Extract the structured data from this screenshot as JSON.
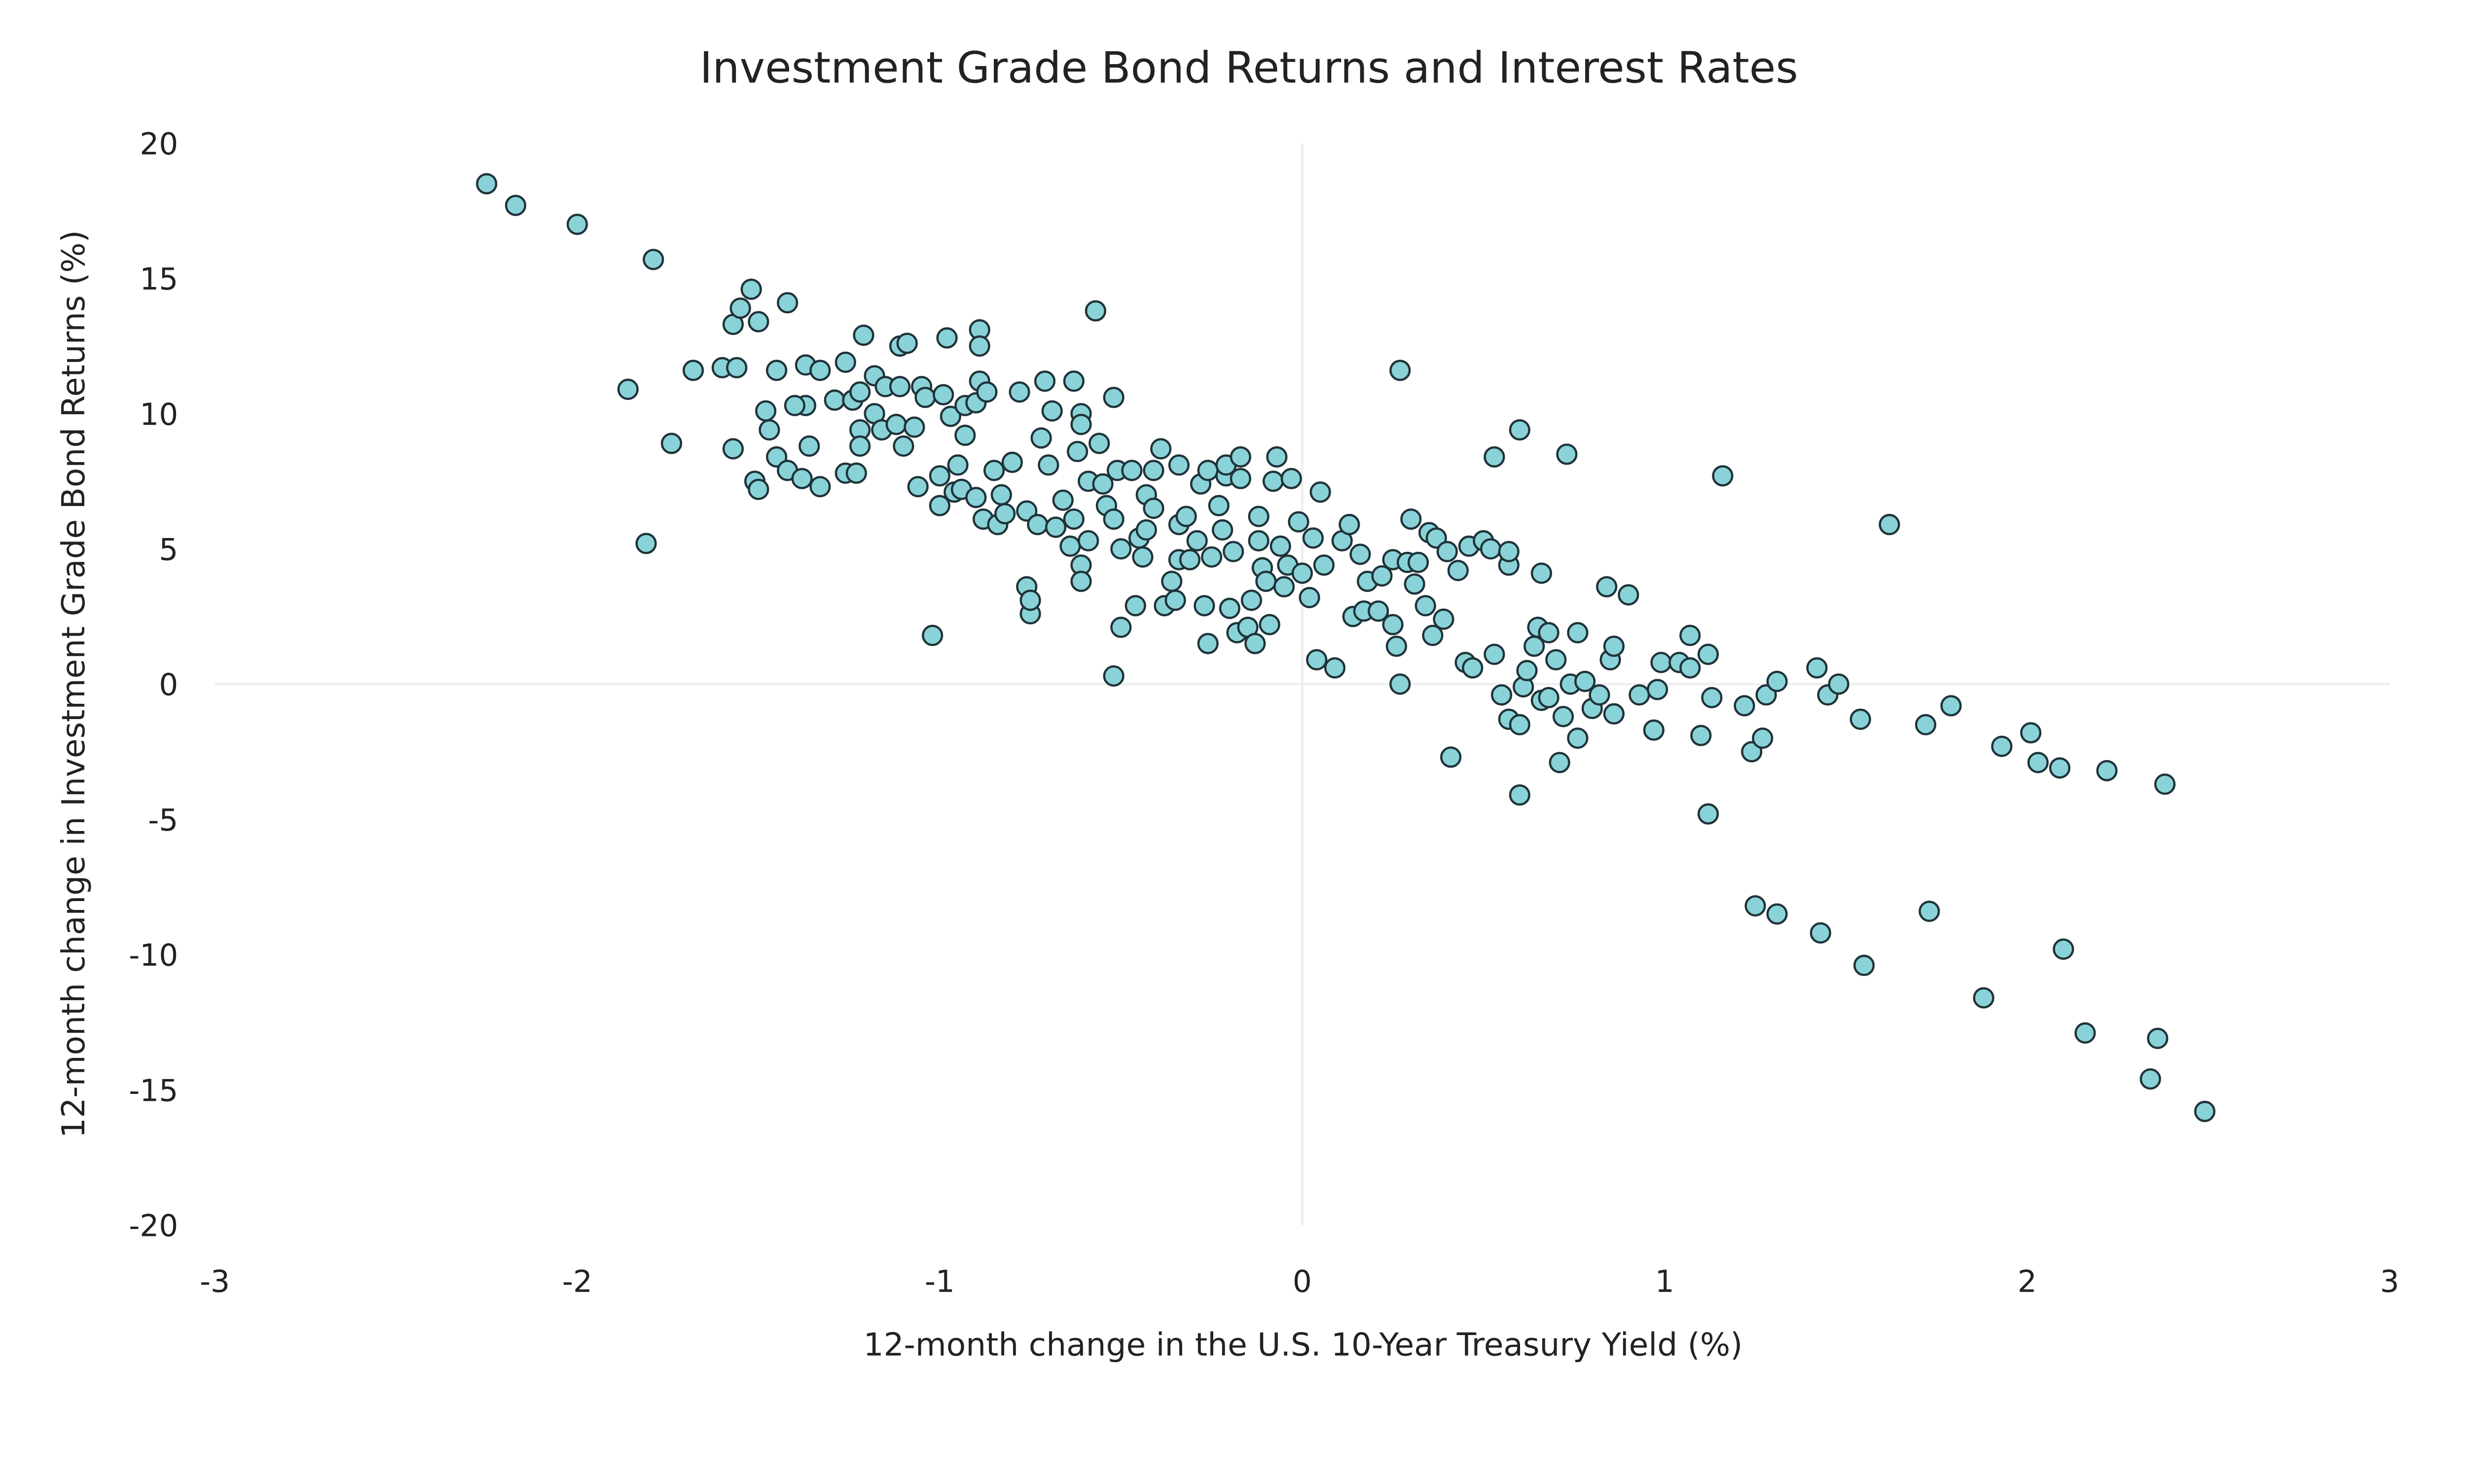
{
  "chart_data": {
    "type": "scatter",
    "title": "Investment Grade Bond Returns and Interest Rates",
    "xlabel": "12-month change in the U.S. 10-Year Treasury Yield (%)",
    "ylabel": "12-month change in Investment Grade Bond Returns (%)",
    "xlim": [
      -3,
      3
    ],
    "ylim": [
      -20,
      20
    ],
    "xticks": [
      "-3",
      "-2",
      "-1",
      "0",
      "1",
      "2",
      "3"
    ],
    "yticks": [
      "20",
      "15",
      "10",
      "5",
      "0",
      "-5",
      "-10",
      "-15",
      "-20"
    ],
    "grid": "zero lines only",
    "colors": {
      "marker_fill": "#89d3d8",
      "marker_edge": "#1f3339",
      "zero_line": "#eeeeee"
    },
    "points": [
      [
        -2.25,
        18.5
      ],
      [
        -2.17,
        17.7
      ],
      [
        -2.0,
        17.0
      ],
      [
        -1.79,
        15.7
      ],
      [
        -1.86,
        10.9
      ],
      [
        -1.74,
        8.9
      ],
      [
        -1.81,
        5.2
      ],
      [
        -1.68,
        11.6
      ],
      [
        -1.6,
        11.7
      ],
      [
        -1.56,
        11.7
      ],
      [
        -1.57,
        13.3
      ],
      [
        -1.55,
        13.9
      ],
      [
        -1.52,
        14.6
      ],
      [
        -1.5,
        13.4
      ],
      [
        -1.42,
        14.1
      ],
      [
        -1.57,
        8.7
      ],
      [
        -1.48,
        10.1
      ],
      [
        -1.47,
        9.4
      ],
      [
        -1.45,
        11.6
      ],
      [
        -1.45,
        8.4
      ],
      [
        -1.51,
        7.5
      ],
      [
        -1.5,
        7.2
      ],
      [
        -1.42,
        7.9
      ],
      [
        -1.38,
        7.6
      ],
      [
        -1.33,
        7.3
      ],
      [
        -1.36,
        8.8
      ],
      [
        -1.37,
        10.3
      ],
      [
        -1.4,
        10.3
      ],
      [
        -1.37,
        11.8
      ],
      [
        -1.33,
        11.6
      ],
      [
        -1.29,
        10.5
      ],
      [
        -1.26,
        11.9
      ],
      [
        -1.26,
        7.8
      ],
      [
        -1.23,
        7.8
      ],
      [
        -1.24,
        10.5
      ],
      [
        -1.22,
        9.4
      ],
      [
        -1.22,
        10.8
      ],
      [
        -1.22,
        8.8
      ],
      [
        -1.21,
        12.9
      ],
      [
        -1.18,
        10.0
      ],
      [
        -1.18,
        11.4
      ],
      [
        -1.16,
        9.4
      ],
      [
        -1.15,
        11.0
      ],
      [
        -1.12,
        9.6
      ],
      [
        -1.11,
        12.5
      ],
      [
        -1.11,
        11.0
      ],
      [
        -1.09,
        12.6
      ],
      [
        -1.1,
        8.8
      ],
      [
        -1.07,
        9.5
      ],
      [
        -1.06,
        7.3
      ],
      [
        -1.05,
        11.0
      ],
      [
        -1.04,
        10.6
      ],
      [
        -1.0,
        6.6
      ],
      [
        -1.02,
        1.8
      ],
      [
        -0.98,
        12.8
      ],
      [
        -0.99,
        10.7
      ],
      [
        -0.97,
        9.9
      ],
      [
        -1.0,
        7.7
      ],
      [
        -0.96,
        7.1
      ],
      [
        -0.95,
        8.1
      ],
      [
        -0.93,
        9.2
      ],
      [
        -0.93,
        10.3
      ],
      [
        -0.94,
        7.2
      ],
      [
        -0.9,
        6.9
      ],
      [
        -0.9,
        10.4
      ],
      [
        -0.89,
        13.1
      ],
      [
        -0.89,
        12.5
      ],
      [
        -0.89,
        11.2
      ],
      [
        -0.88,
        6.1
      ],
      [
        -0.87,
        10.8
      ],
      [
        -0.85,
        7.9
      ],
      [
        -0.84,
        5.9
      ],
      [
        -0.83,
        7.0
      ],
      [
        -0.82,
        6.3
      ],
      [
        -0.8,
        8.2
      ],
      [
        -0.78,
        10.8
      ],
      [
        -0.76,
        3.6
      ],
      [
        -0.75,
        2.6
      ],
      [
        -0.75,
        3.1
      ],
      [
        -0.76,
        6.4
      ],
      [
        -0.73,
        5.9
      ],
      [
        -0.72,
        9.1
      ],
      [
        -0.71,
        11.2
      ],
      [
        -0.7,
        8.1
      ],
      [
        -0.69,
        10.1
      ],
      [
        -0.68,
        5.8
      ],
      [
        -0.66,
        6.8
      ],
      [
        -0.64,
        5.1
      ],
      [
        -0.63,
        6.1
      ],
      [
        -0.63,
        11.2
      ],
      [
        -0.62,
        8.6
      ],
      [
        -0.61,
        10.0
      ],
      [
        -0.61,
        9.6
      ],
      [
        -0.61,
        4.4
      ],
      [
        -0.61,
        3.8
      ],
      [
        -0.59,
        7.5
      ],
      [
        -0.59,
        5.3
      ],
      [
        -0.57,
        13.8
      ],
      [
        -0.56,
        8.9
      ],
      [
        -0.55,
        7.4
      ],
      [
        -0.54,
        6.6
      ],
      [
        -0.52,
        6.1
      ],
      [
        -0.52,
        10.6
      ],
      [
        -0.52,
        0.3
      ],
      [
        -0.51,
        7.9
      ],
      [
        -0.5,
        2.1
      ],
      [
        -0.5,
        5.0
      ],
      [
        -0.47,
        7.9
      ],
      [
        -0.46,
        2.9
      ],
      [
        -0.45,
        5.4
      ],
      [
        -0.44,
        4.7
      ],
      [
        -0.43,
        7.0
      ],
      [
        -0.41,
        7.9
      ],
      [
        -0.41,
        6.5
      ],
      [
        -0.43,
        5.7
      ],
      [
        -0.39,
        8.7
      ],
      [
        -0.38,
        2.9
      ],
      [
        -0.36,
        3.8
      ],
      [
        -0.35,
        3.1
      ],
      [
        -0.34,
        8.1
      ],
      [
        -0.34,
        5.9
      ],
      [
        -0.34,
        4.6
      ],
      [
        -0.32,
        6.2
      ],
      [
        -0.31,
        4.6
      ],
      [
        -0.29,
        5.3
      ],
      [
        -0.28,
        7.4
      ],
      [
        -0.27,
        2.9
      ],
      [
        -0.26,
        1.5
      ],
      [
        -0.26,
        7.9
      ],
      [
        -0.25,
        4.7
      ],
      [
        -0.23,
        6.6
      ],
      [
        -0.22,
        5.7
      ],
      [
        -0.21,
        7.7
      ],
      [
        -0.21,
        8.1
      ],
      [
        -0.2,
        2.8
      ],
      [
        -0.19,
        4.9
      ],
      [
        -0.18,
        1.9
      ],
      [
        -0.17,
        8.4
      ],
      [
        -0.17,
        7.6
      ],
      [
        -0.15,
        2.1
      ],
      [
        -0.14,
        3.1
      ],
      [
        -0.13,
        1.5
      ],
      [
        -0.12,
        5.3
      ],
      [
        -0.12,
        6.2
      ],
      [
        -0.11,
        4.3
      ],
      [
        -0.1,
        3.8
      ],
      [
        -0.09,
        2.2
      ],
      [
        -0.08,
        7.5
      ],
      [
        -0.07,
        8.4
      ],
      [
        -0.06,
        5.1
      ],
      [
        -0.05,
        3.6
      ],
      [
        -0.04,
        4.4
      ],
      [
        -0.03,
        7.6
      ],
      [
        -0.01,
        6.0
      ],
      [
        0.0,
        4.1
      ],
      [
        0.02,
        3.2
      ],
      [
        0.03,
        5.4
      ],
      [
        0.04,
        0.9
      ],
      [
        0.05,
        7.1
      ],
      [
        0.06,
        4.4
      ],
      [
        0.09,
        0.6
      ],
      [
        0.11,
        5.3
      ],
      [
        0.13,
        5.9
      ],
      [
        0.14,
        2.5
      ],
      [
        0.16,
        4.8
      ],
      [
        0.17,
        2.7
      ],
      [
        0.18,
        3.8
      ],
      [
        0.21,
        2.7
      ],
      [
        0.22,
        4.0
      ],
      [
        0.25,
        4.6
      ],
      [
        0.25,
        2.2
      ],
      [
        0.26,
        1.4
      ],
      [
        0.27,
        11.6
      ],
      [
        0.27,
        0.0
      ],
      [
        0.29,
        4.5
      ],
      [
        0.3,
        6.1
      ],
      [
        0.31,
        3.7
      ],
      [
        0.32,
        4.5
      ],
      [
        0.34,
        2.9
      ],
      [
        0.35,
        5.6
      ],
      [
        0.36,
        1.8
      ],
      [
        0.37,
        5.4
      ],
      [
        0.39,
        2.4
      ],
      [
        0.4,
        4.9
      ],
      [
        0.41,
        -2.7
      ],
      [
        0.43,
        4.2
      ],
      [
        0.45,
        0.8
      ],
      [
        0.46,
        5.1
      ],
      [
        0.47,
        0.6
      ],
      [
        0.5,
        5.3
      ],
      [
        0.52,
        5.0
      ],
      [
        0.53,
        8.4
      ],
      [
        0.53,
        1.1
      ],
      [
        0.55,
        -0.4
      ],
      [
        0.57,
        4.4
      ],
      [
        0.57,
        4.9
      ],
      [
        0.57,
        -1.3
      ],
      [
        0.6,
        9.4
      ],
      [
        0.6,
        -4.1
      ],
      [
        0.6,
        -1.5
      ],
      [
        0.61,
        -0.1
      ],
      [
        0.62,
        0.5
      ],
      [
        0.64,
        1.4
      ],
      [
        0.65,
        2.1
      ],
      [
        0.66,
        4.1
      ],
      [
        0.66,
        -0.6
      ],
      [
        0.68,
        1.9
      ],
      [
        0.68,
        -0.5
      ],
      [
        0.7,
        0.9
      ],
      [
        0.71,
        -2.9
      ],
      [
        0.72,
        -1.2
      ],
      [
        0.73,
        8.5
      ],
      [
        0.74,
        0.0
      ],
      [
        0.76,
        -2.0
      ],
      [
        0.76,
        1.9
      ],
      [
        0.78,
        0.1
      ],
      [
        0.8,
        -0.9
      ],
      [
        0.82,
        -0.4
      ],
      [
        0.84,
        3.6
      ],
      [
        0.85,
        0.9
      ],
      [
        0.86,
        1.4
      ],
      [
        0.86,
        -1.1
      ],
      [
        0.9,
        3.3
      ],
      [
        0.93,
        -0.4
      ],
      [
        0.97,
        -1.7
      ],
      [
        0.98,
        -0.2
      ],
      [
        0.99,
        0.8
      ],
      [
        1.04,
        0.8
      ],
      [
        1.07,
        1.8
      ],
      [
        1.07,
        0.6
      ],
      [
        1.1,
        -1.9
      ],
      [
        1.12,
        1.1
      ],
      [
        1.12,
        -4.8
      ],
      [
        1.13,
        -0.5
      ],
      [
        1.16,
        7.7
      ],
      [
        1.22,
        -0.8
      ],
      [
        1.24,
        -2.5
      ],
      [
        1.25,
        -8.2
      ],
      [
        1.27,
        -2.0
      ],
      [
        1.28,
        -0.4
      ],
      [
        1.31,
        0.1
      ],
      [
        1.31,
        -8.5
      ],
      [
        1.42,
        0.6
      ],
      [
        1.43,
        -9.2
      ],
      [
        1.45,
        -0.4
      ],
      [
        1.48,
        0.0
      ],
      [
        1.54,
        -1.3
      ],
      [
        1.55,
        -10.4
      ],
      [
        1.62,
        5.9
      ],
      [
        1.72,
        -1.5
      ],
      [
        1.73,
        -8.4
      ],
      [
        1.79,
        -0.8
      ],
      [
        1.88,
        -11.6
      ],
      [
        1.93,
        -2.3
      ],
      [
        2.01,
        -1.8
      ],
      [
        2.03,
        -2.9
      ],
      [
        2.09,
        -3.1
      ],
      [
        2.1,
        -9.8
      ],
      [
        2.16,
        -12.9
      ],
      [
        2.22,
        -3.2
      ],
      [
        2.34,
        -14.6
      ],
      [
        2.36,
        -13.1
      ],
      [
        2.38,
        -3.7
      ],
      [
        2.49,
        -15.8
      ]
    ]
  }
}
